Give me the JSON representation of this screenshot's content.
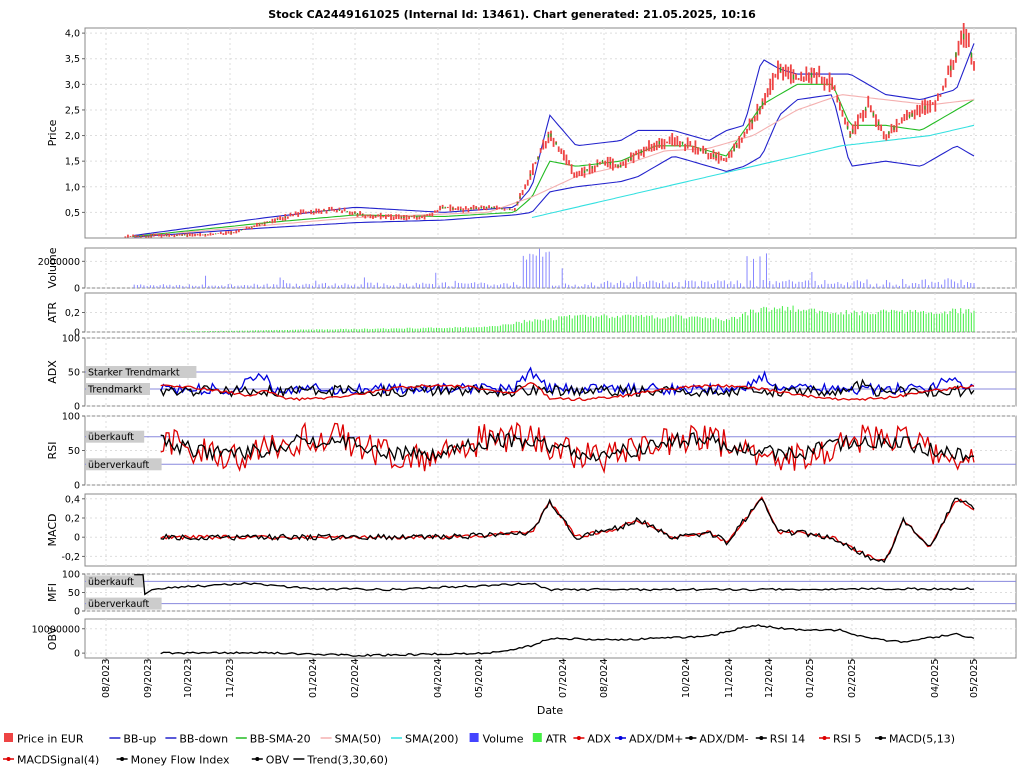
{
  "chart_data": {
    "type": "line",
    "title": "Stock CA2449161025 (Internal Id: 13461). Chart generated: 21.05.2025, 10:16",
    "xlabel": "Date",
    "x_ticks": [
      "08/2023",
      "09/2023",
      "10/2023",
      "11/2023",
      "01/2024",
      "02/2024",
      "04/2024",
      "05/2024",
      "07/2024",
      "08/2024",
      "10/2024",
      "11/2024",
      "12/2024",
      "01/2025",
      "02/2025",
      "04/2025",
      "05/2025"
    ],
    "legend_position": "bottom",
    "legend": [
      {
        "label": "Price in EUR",
        "color": "#ee4444",
        "marker": "square"
      },
      {
        "label": "BB-up",
        "color": "#2222cc",
        "marker": "line"
      },
      {
        "label": "BB-down",
        "color": "#2222cc",
        "marker": "line"
      },
      {
        "label": "BB-SMA-20",
        "color": "#22bb22",
        "marker": "line"
      },
      {
        "label": "SMA(50)",
        "color": "#f4b0b0",
        "marker": "line"
      },
      {
        "label": "SMA(200)",
        "color": "#33e0e0",
        "marker": "line"
      },
      {
        "label": "Volume",
        "color": "#4444ff",
        "marker": "square"
      },
      {
        "label": "ATR",
        "color": "#44ee44",
        "marker": "square"
      },
      {
        "label": "ADX",
        "color": "#dd0000",
        "marker": "dot"
      },
      {
        "label": "ADX/DM+",
        "color": "#0000dd",
        "marker": "dot"
      },
      {
        "label": "ADX/DM-",
        "color": "#000000",
        "marker": "dot"
      },
      {
        "label": "RSI 14",
        "color": "#000000",
        "marker": "dot"
      },
      {
        "label": "RSI 5",
        "color": "#dd0000",
        "marker": "dot"
      },
      {
        "label": "MACD(5,13)",
        "color": "#000000",
        "marker": "dot"
      },
      {
        "label": "MACDSignal(4)",
        "color": "#dd0000",
        "marker": "dot"
      },
      {
        "label": "Money Flow Index",
        "color": "#000000",
        "marker": "dot"
      },
      {
        "label": "OBV",
        "color": "#000000",
        "marker": "dot"
      },
      {
        "label": "Trend(3,30,60)",
        "color": "#000000",
        "marker": "line"
      }
    ],
    "panels": [
      {
        "name": "price",
        "ylabel": "Price",
        "ylim": [
          0,
          4.1
        ],
        "yticks": [
          "0,5",
          "1,0",
          "1,5",
          "2,0",
          "2,5",
          "3,0",
          "3,5",
          "4,0"
        ],
        "series": [
          {
            "name": "Price in EUR",
            "x": [
              0,
              0.05,
              0.08,
              0.12,
              0.16,
              0.2,
              0.24,
              0.28,
              0.31,
              0.35,
              0.38,
              0.4,
              0.42,
              0.45,
              0.48,
              0.5,
              0.52,
              0.55,
              0.58,
              0.6,
              0.62,
              0.64,
              0.66,
              0.68,
              0.7,
              0.72,
              0.74,
              0.76,
              0.78,
              0.8,
              0.82,
              0.84,
              0.86,
              0.88,
              0.9,
              0.92,
              0.94,
              0.96,
              0.98,
              0.99,
              1.0
            ],
            "y": [
              0.02,
              0.03,
              0.05,
              0.06,
              0.1,
              0.3,
              0.5,
              0.55,
              0.45,
              0.4,
              0.42,
              0.6,
              0.55,
              0.6,
              0.55,
              1.3,
              2.05,
              1.2,
              1.5,
              1.4,
              1.65,
              1.85,
              1.9,
              1.8,
              1.65,
              1.5,
              2.0,
              2.6,
              3.3,
              3.1,
              3.2,
              3.0,
              2.0,
              2.6,
              2.0,
              2.3,
              2.5,
              2.7,
              3.6,
              4.0,
              3.4
            ]
          },
          {
            "name": "BB-up",
            "x": [
              0.05,
              0.2,
              0.3,
              0.4,
              0.48,
              0.5,
              0.52,
              0.55,
              0.6,
              0.62,
              0.66,
              0.7,
              0.72,
              0.74,
              0.76,
              0.78,
              0.8,
              0.84,
              0.86,
              0.9,
              0.94,
              0.98,
              1.0
            ],
            "y": [
              0.05,
              0.4,
              0.6,
              0.5,
              0.6,
              1.0,
              2.4,
              1.8,
              1.9,
              2.1,
              2.1,
              1.9,
              2.1,
              2.2,
              3.5,
              3.3,
              3.2,
              3.2,
              3.2,
              2.8,
              2.7,
              2.9,
              3.8
            ]
          },
          {
            "name": "BB-down",
            "x": [
              0.05,
              0.2,
              0.3,
              0.4,
              0.48,
              0.5,
              0.52,
              0.55,
              0.6,
              0.62,
              0.66,
              0.7,
              0.72,
              0.74,
              0.76,
              0.78,
              0.8,
              0.84,
              0.86,
              0.9,
              0.94,
              0.98,
              1.0
            ],
            "y": [
              0.02,
              0.2,
              0.3,
              0.35,
              0.45,
              0.5,
              0.9,
              1.0,
              1.1,
              1.2,
              1.6,
              1.4,
              1.3,
              1.4,
              1.6,
              2.4,
              2.7,
              2.8,
              1.4,
              1.5,
              1.4,
              1.8,
              1.6
            ]
          },
          {
            "name": "BB-SMA-20",
            "x": [
              0.05,
              0.2,
              0.3,
              0.4,
              0.48,
              0.5,
              0.52,
              0.55,
              0.6,
              0.64,
              0.68,
              0.72,
              0.76,
              0.8,
              0.84,
              0.86,
              0.9,
              0.94,
              0.98,
              1.0
            ],
            "y": [
              0.03,
              0.3,
              0.45,
              0.42,
              0.5,
              0.8,
              1.5,
              1.4,
              1.5,
              1.8,
              1.8,
              1.6,
              2.6,
              3.0,
              3.0,
              2.2,
              2.2,
              2.1,
              2.5,
              2.7
            ]
          },
          {
            "name": "SMA(50)",
            "x": [
              0.1,
              0.3,
              0.45,
              0.5,
              0.55,
              0.6,
              0.65,
              0.7,
              0.75,
              0.8,
              0.85,
              0.9,
              0.95,
              1.0
            ],
            "y": [
              0.1,
              0.4,
              0.5,
              0.8,
              1.2,
              1.4,
              1.7,
              1.75,
              2.0,
              2.5,
              2.8,
              2.7,
              2.6,
              2.7
            ]
          },
          {
            "name": "SMA(200)",
            "x": [
              0.5,
              0.55,
              0.6,
              0.65,
              0.7,
              0.75,
              0.8,
              0.85,
              0.9,
              0.95,
              1.0
            ],
            "y": [
              0.4,
              0.6,
              0.8,
              1.0,
              1.2,
              1.4,
              1.6,
              1.8,
              1.9,
              2.0,
              2.2
            ]
          }
        ]
      },
      {
        "name": "volume",
        "ylabel": "Volume",
        "ylim": [
          0,
          3000000
        ],
        "yticks": [
          "0",
          "2000000"
        ]
      },
      {
        "name": "atr",
        "ylabel": "ATR",
        "ylim": [
          0,
          0.4
        ],
        "yticks": [
          "0",
          "0,2"
        ]
      },
      {
        "name": "adx",
        "ylabel": "ADX",
        "ylim": [
          0,
          100
        ],
        "yticks": [
          "0",
          "50",
          "100"
        ],
        "bands": [
          {
            "label": "Starker Trendmarkt",
            "value": 50
          },
          {
            "label": "Trendmarkt",
            "value": 25
          }
        ]
      },
      {
        "name": "rsi",
        "ylabel": "RSI",
        "ylim": [
          0,
          100
        ],
        "yticks": [
          "0",
          "50",
          "100"
        ],
        "bands": [
          {
            "label": "überkauft",
            "value": 70
          },
          {
            "label": "überverkauft",
            "value": 30
          }
        ]
      },
      {
        "name": "macd",
        "ylabel": "MACD",
        "ylim": [
          -0.3,
          0.45
        ],
        "yticks": [
          "-0,2",
          "0",
          "0,2",
          "0,4"
        ]
      },
      {
        "name": "mfi",
        "ylabel": "MFI",
        "ylim": [
          0,
          100
        ],
        "yticks": [
          "0",
          "50",
          "100"
        ],
        "bands": [
          {
            "label": "überkauft",
            "value": 80
          },
          {
            "label": "überverkauft",
            "value": 20
          }
        ]
      },
      {
        "name": "obv",
        "ylabel": "OBV",
        "ylim": [
          -2000000,
          14000000
        ],
        "yticks": [
          "0",
          "10000000"
        ]
      }
    ]
  }
}
